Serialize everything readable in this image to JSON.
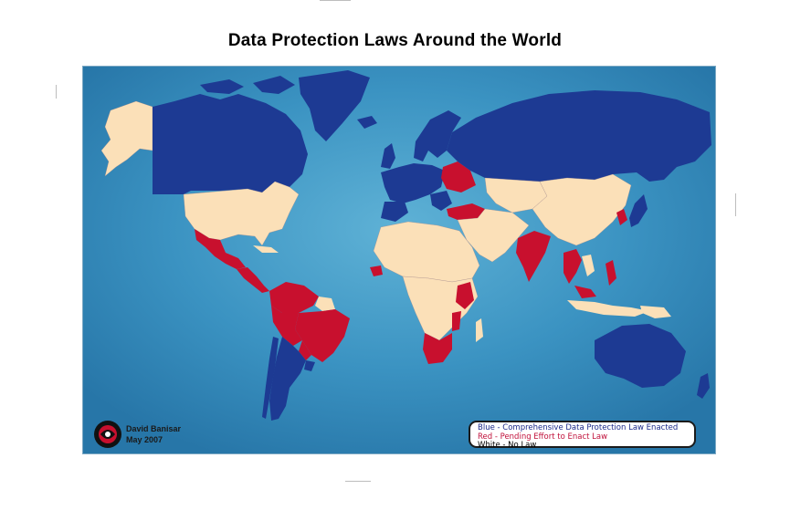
{
  "title": "Data Protection Laws Around the World",
  "author": {
    "name": "David Banisar",
    "date": "May 2007"
  },
  "legend": {
    "blue": "Blue - Comprehensive Data Protection Law Enacted",
    "red": "Red -  Pending Effort to Enact Law",
    "white": "White - No Law"
  },
  "colors": {
    "ocean": "#2f86b8",
    "ocean_light": "#4aa3cc",
    "law_enacted": "#1d3a93",
    "pending_law": "#c8102e",
    "no_law": "#fbe0b8"
  },
  "logo_icon": "privacy-international-logo-icon"
}
